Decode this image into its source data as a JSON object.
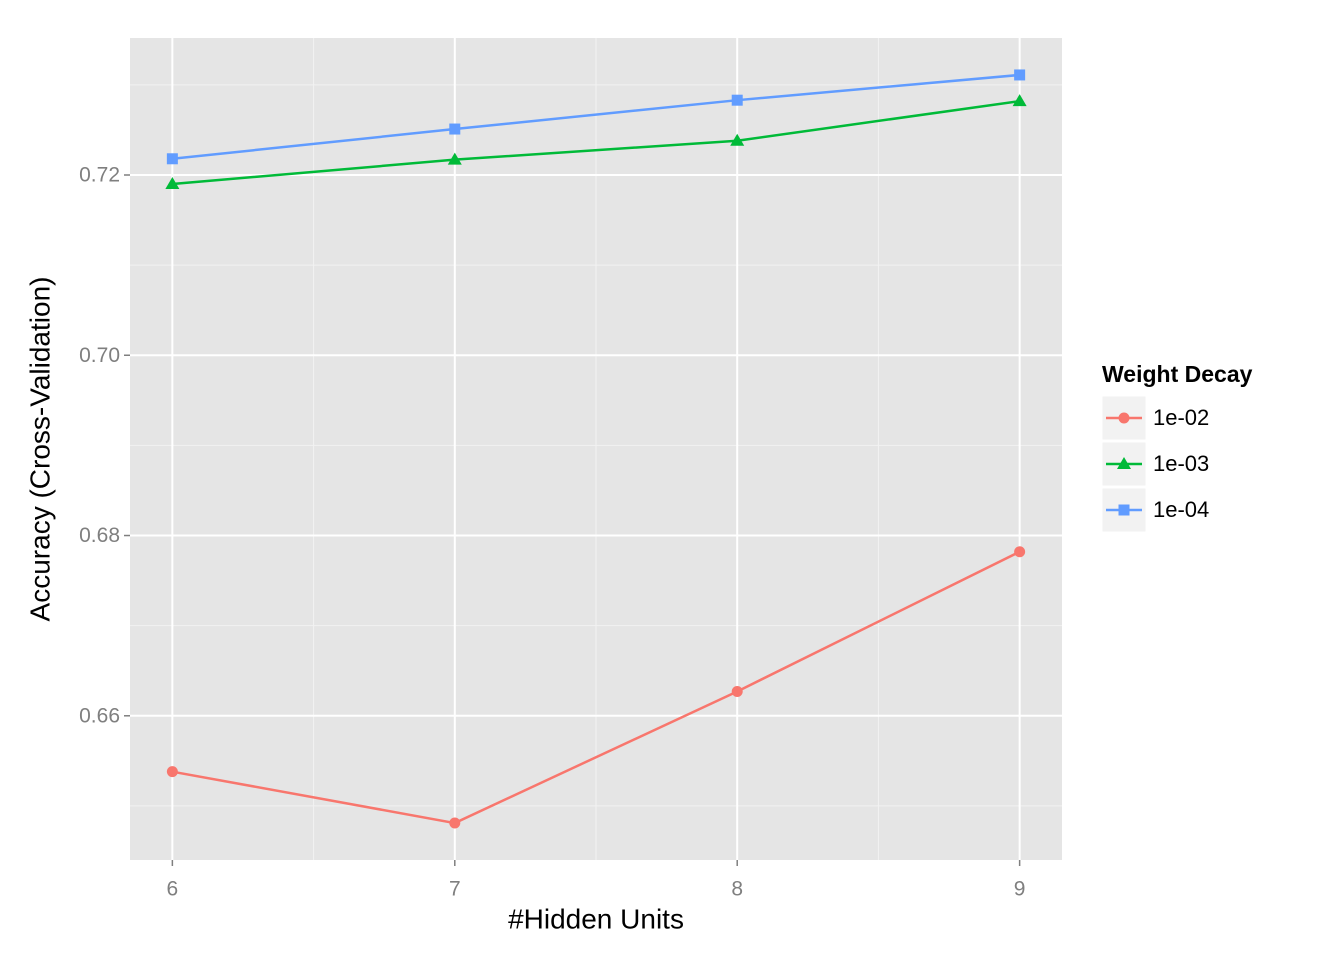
{
  "chart_data": {
    "type": "line",
    "x_label": "#Hidden Units",
    "y_label": "Accuracy (Cross-Validation)",
    "x": [
      6,
      7,
      8,
      9
    ],
    "series": [
      {
        "name": "1e-02",
        "color": "#f8766d",
        "marker": "circle",
        "values": [
          0.6538,
          0.6481,
          0.6627,
          0.6782
        ]
      },
      {
        "name": "1e-03",
        "color": "#00ba38",
        "marker": "triangle",
        "values": [
          0.719,
          0.7217,
          0.7238,
          0.7282
        ]
      },
      {
        "name": "1e-04",
        "color": "#619cff",
        "marker": "square",
        "values": [
          0.7218,
          0.7251,
          0.7283,
          0.7311
        ]
      }
    ],
    "legend_title": "Weight Decay",
    "legend": "right",
    "xlim": [
      5.85,
      9.15
    ],
    "xticks": [
      6,
      7,
      8,
      9
    ],
    "x_minor_ticks": [
      6.5,
      7.5,
      8.5
    ],
    "ylim": [
      0.644,
      0.7352
    ],
    "yticks": [
      {
        "value": 0.66,
        "label": "0.66"
      },
      {
        "value": 0.68,
        "label": "0.68"
      },
      {
        "value": 0.7,
        "label": "0.70"
      },
      {
        "value": 0.72,
        "label": "0.72"
      }
    ],
    "y_minor_ticks": [
      0.65,
      0.67,
      0.69,
      0.71,
      0.73
    ],
    "grid": true
  }
}
